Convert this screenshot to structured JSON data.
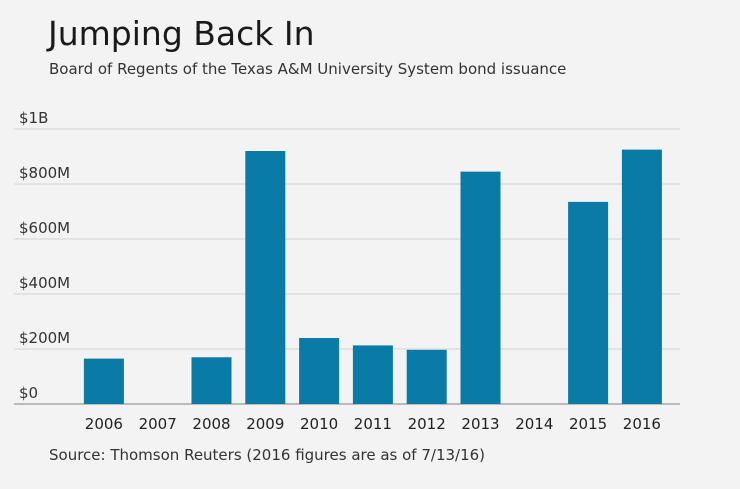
{
  "chart_data": {
    "type": "bar",
    "title": "Jumping Back In",
    "subtitle": "Board of Regents of the Texas A&M University System bond issuance",
    "source": "Source: Thomson Reuters (2016 figures are as of 7/13/16)",
    "categories": [
      "2006",
      "2007",
      "2008",
      "2009",
      "2010",
      "2011",
      "2012",
      "2013",
      "2014",
      "2015",
      "2016"
    ],
    "values": [
      165000000,
      0,
      170000000,
      920000000,
      240000000,
      213000000,
      197000000,
      845000000,
      0,
      735000000,
      925000000
    ],
    "ylim": [
      0,
      1000000000
    ],
    "y_ticks": [
      {
        "value": 0,
        "label": "$0"
      },
      {
        "value": 200000000,
        "label": "$200M"
      },
      {
        "value": 400000000,
        "label": "$400M"
      },
      {
        "value": 600000000,
        "label": "$600M"
      },
      {
        "value": 800000000,
        "label": "$800M"
      },
      {
        "value": 1000000000,
        "label": "$1B"
      }
    ],
    "grid": true,
    "bar_color": "#0a7aa6",
    "grid_color": "#d2d4d3",
    "axis_color": "#999999"
  }
}
